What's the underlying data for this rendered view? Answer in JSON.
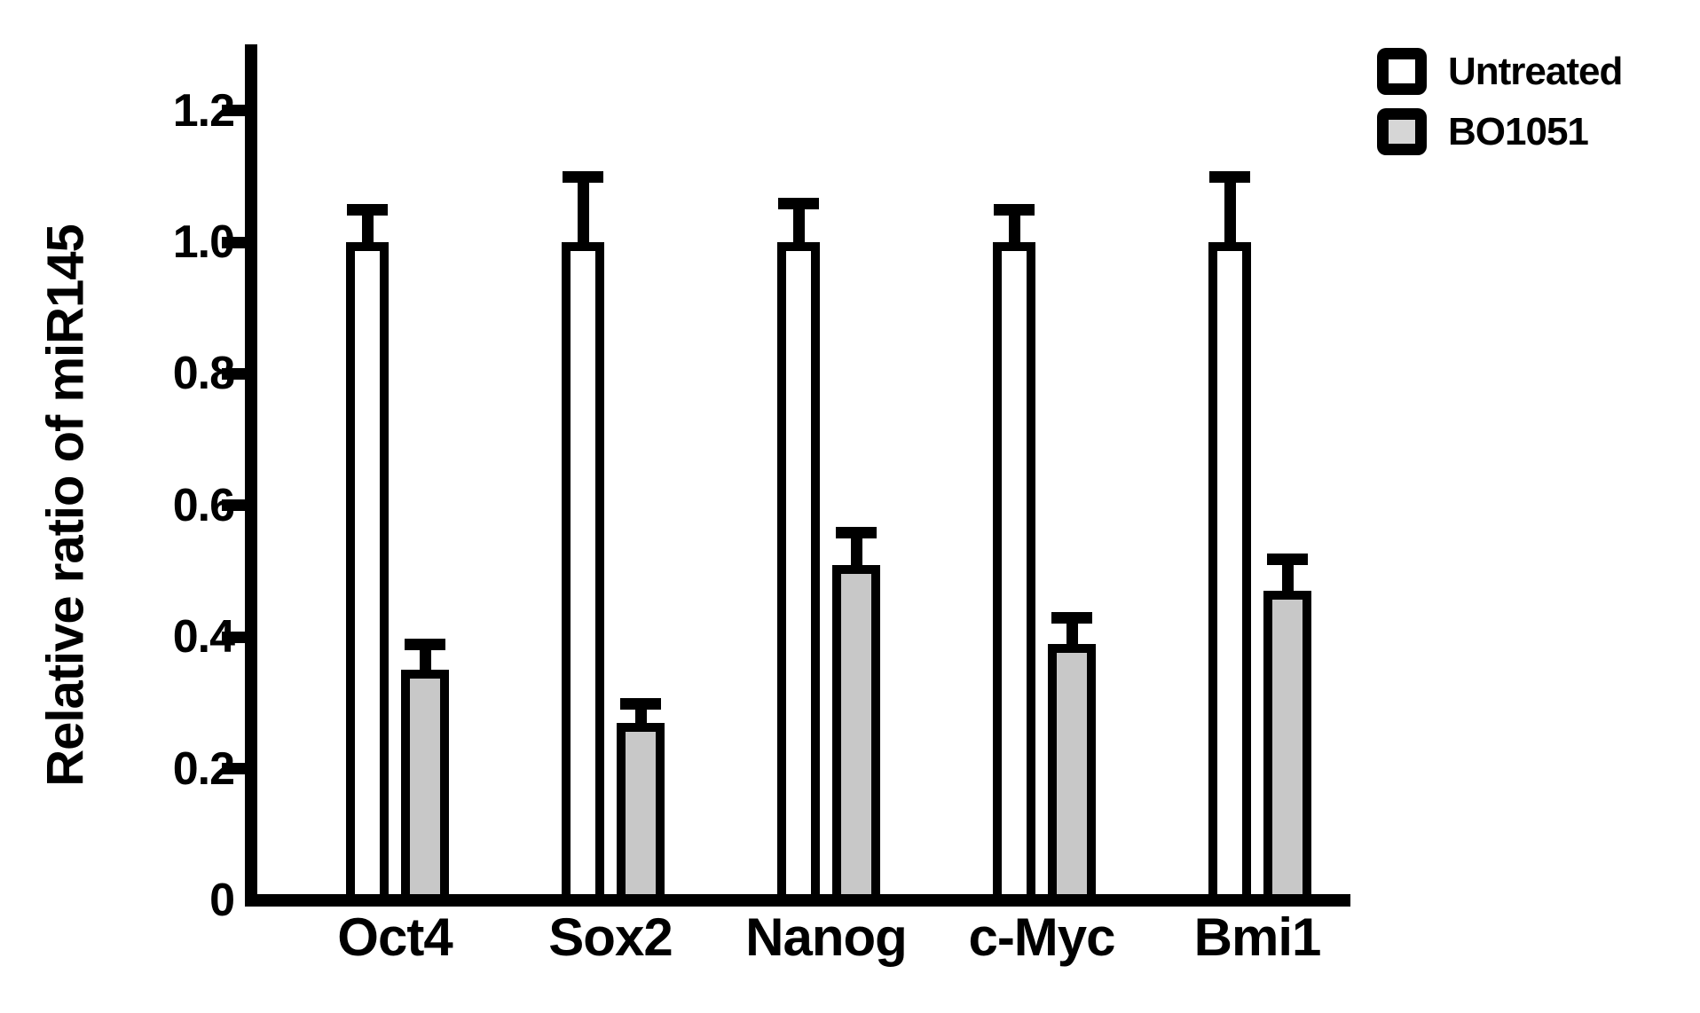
{
  "figure": {
    "background": "#ffffff",
    "axis_color": "#000000"
  },
  "chart_data": {
    "type": "bar",
    "title": "",
    "xlabel": "",
    "ylabel": "Relative ratio of miR145",
    "categories": [
      "Oct4",
      "Sox2",
      "Nanog",
      "c-Myc",
      "Bmi1"
    ],
    "series": [
      {
        "name": "Untreated",
        "fill": "#ffffff",
        "outline": "#000000",
        "values": [
          1.0,
          1.0,
          1.0,
          1.0,
          1.0
        ],
        "errors_plus": [
          0.04,
          0.09,
          0.05,
          0.04,
          0.09
        ]
      },
      {
        "name": "BO1051",
        "fill": "#c8c8c8",
        "outline": "#000000",
        "values": [
          0.35,
          0.27,
          0.51,
          0.39,
          0.47
        ],
        "errors_plus": [
          0.03,
          0.02,
          0.04,
          0.03,
          0.04
        ]
      }
    ],
    "y_ticks": [
      {
        "label": "1.2",
        "value": 1.2
      },
      {
        "label": "1.0",
        "value": 1.0
      },
      {
        "label": "0.8",
        "value": 0.8
      },
      {
        "label": "0.6",
        "value": 0.6
      },
      {
        "label": "0.4",
        "value": 0.4
      },
      {
        "label": "0.2",
        "value": 0.2
      },
      {
        "label": "0",
        "value": 0
      }
    ],
    "ylim": [
      0,
      1.3
    ],
    "grid": false,
    "error_bars": "upper_with_caps",
    "legend_position": "top-right"
  },
  "legend": {
    "items": [
      {
        "label": "Untreated",
        "swatch_fill": "#ffffff",
        "swatch_border": "#000000"
      },
      {
        "label": "BO1051",
        "swatch_fill": "#d6d6d6",
        "swatch_border": "#000000"
      }
    ]
  }
}
